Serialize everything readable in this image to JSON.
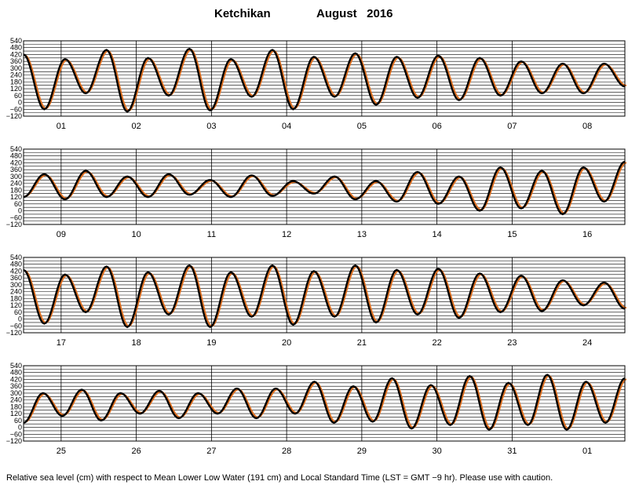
{
  "header": {
    "station": "Ketchikan",
    "month_year": "August   2016"
  },
  "footer": {
    "note": "Relative sea level (cm) with respect to Mean Lower Low Water (191 cm) and Local Standard Time (LST = GMT −9 hr). Please use with caution."
  },
  "colors": {
    "observed": "#000000",
    "predicted": "#e07020",
    "grid": "#000000"
  },
  "chart_data": {
    "type": "line",
    "series": [
      {
        "name": "",
        "color": "#000000"
      },
      {
        "name": "",
        "color": "#e07020"
      }
    ],
    "ylim": [
      -120,
      540
    ],
    "y_ticks": [
      540,
      510,
      480,
      450,
      420,
      390,
      360,
      330,
      300,
      270,
      240,
      210,
      180,
      150,
      120,
      90,
      60,
      30,
      0,
      -30,
      -60,
      -90,
      -120
    ],
    "y_tick_labels": [
      "540",
      "480",
      "420",
      "360",
      "300",
      "240",
      "180",
      "120",
      "60",
      "0",
      "−60",
      "−120"
    ],
    "grid": true,
    "panels": [
      {
        "days": [
          "01",
          "02",
          "03",
          "04",
          "05",
          "06",
          "07",
          "08"
        ],
        "extrema": [
          420,
          -60,
          380,
          80,
          460,
          -80,
          390,
          60,
          470,
          -70,
          380,
          50,
          460,
          -60,
          400,
          50,
          430,
          -20,
          400,
          40,
          410,
          20,
          390,
          60,
          360,
          80,
          340,
          80,
          340,
          140
        ]
      },
      {
        "days": [
          "09",
          "10",
          "11",
          "12",
          "13",
          "14",
          "15",
          "16"
        ],
        "extrema": [
          120,
          320,
          100,
          350,
          120,
          300,
          120,
          320,
          140,
          270,
          120,
          310,
          130,
          260,
          150,
          300,
          100,
          260,
          80,
          340,
          60,
          300,
          0,
          380,
          20,
          350,
          -30,
          380,
          80,
          430
        ]
      },
      {
        "days": [
          "17",
          "18",
          "19",
          "20",
          "21",
          "22",
          "23",
          "24"
        ],
        "extrema": [
          430,
          -40,
          390,
          60,
          460,
          -70,
          410,
          40,
          470,
          -70,
          410,
          20,
          470,
          -50,
          420,
          20,
          470,
          -30,
          430,
          40,
          440,
          10,
          400,
          60,
          380,
          70,
          340,
          120,
          320,
          90
        ]
      },
      {
        "days": [
          "25",
          "26",
          "27",
          "28",
          "29",
          "30",
          "31",
          "01"
        ],
        "extrema": [
          40,
          300,
          100,
          330,
          60,
          300,
          120,
          320,
          80,
          300,
          120,
          340,
          80,
          340,
          120,
          400,
          40,
          360,
          50,
          430,
          -10,
          370,
          20,
          450,
          -20,
          390,
          20,
          460,
          -20,
          400,
          40,
          430
        ]
      }
    ]
  }
}
